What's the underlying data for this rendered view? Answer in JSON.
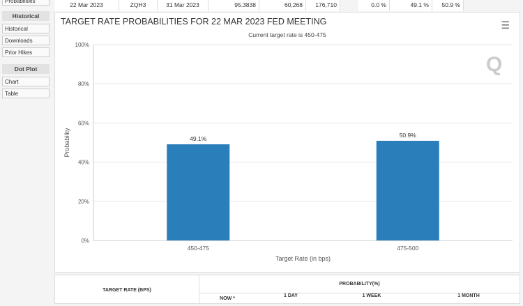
{
  "sidebar": {
    "top_item": "Probabilities",
    "sections": [
      {
        "header": "Historical",
        "items": [
          "Historical",
          "Downloads",
          "Prior Hikes"
        ]
      },
      {
        "header": "Dot Plot",
        "items": [
          "Chart",
          "Table"
        ]
      }
    ]
  },
  "top_row": [
    "22 Mar 2023",
    "ZQH3",
    "31 Mar 2023",
    "95.3838",
    "60,268",
    "176,710",
    "0.0 %",
    "49.1 %",
    "50.9 %"
  ],
  "chart": {
    "title": "TARGET RATE PROBABILITIES FOR 22 MAR 2023 FED MEETING",
    "subtitle": "Current target rate is 450-475",
    "menu_icon": "hamburger-icon",
    "watermark": "Q"
  },
  "chart_data": {
    "type": "bar",
    "categories": [
      "450-475",
      "475-500"
    ],
    "values": [
      49.1,
      50.9
    ],
    "data_labels": [
      "49.1%",
      "50.9%"
    ],
    "xlabel": "Target Rate (in bps)",
    "ylabel": "Probability",
    "ylim": [
      0,
      100
    ],
    "yticks": [
      "0%",
      "20%",
      "40%",
      "60%",
      "80%",
      "100%"
    ],
    "color": "#2a7fba",
    "grid": true
  },
  "table": {
    "col1": "TARGET RATE (BPS)",
    "prob": "PROBABILITY(%)",
    "cols": [
      "NOW *",
      "1 DAY",
      "1 WEEK",
      "1 MONTH"
    ]
  }
}
